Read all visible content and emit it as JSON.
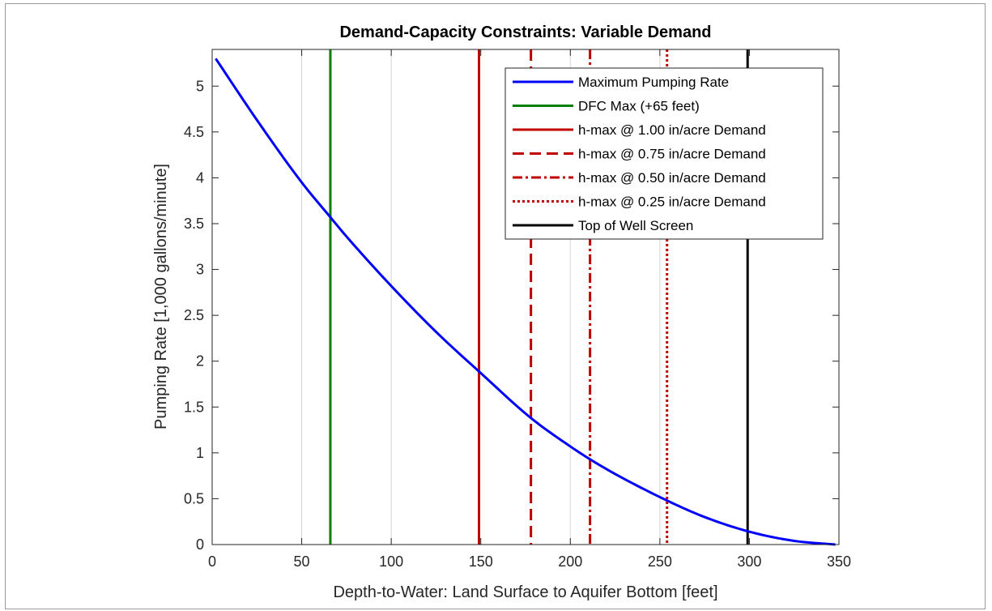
{
  "chart_data": {
    "type": "line",
    "title": "Demand-Capacity Constraints: Variable Demand",
    "xlabel": "Depth-to-Water: Land Surface to Aquifer Bottom [feet]",
    "ylabel": "Pumping Rate [1,000 gallons/minute]",
    "xlim": [
      0,
      350
    ],
    "ylim": [
      0,
      5.4
    ],
    "xticks": [
      "0",
      "50",
      "100",
      "150",
      "200",
      "250",
      "300",
      "350"
    ],
    "yticks": [
      "0",
      "0.5",
      "1",
      "1.5",
      "2",
      "2.5",
      "3",
      "3.5",
      "4",
      "4.5",
      "5"
    ],
    "xtick_values": [
      0,
      50,
      100,
      150,
      200,
      250,
      300,
      350
    ],
    "ytick_values": [
      0,
      0.5,
      1,
      1.5,
      2,
      2.5,
      3,
      3.5,
      4,
      4.5,
      5
    ],
    "grid_x": [
      50,
      100,
      200,
      250
    ],
    "legend_position": "top-right",
    "series": [
      {
        "name": "Maximum Pumping Rate",
        "kind": "curve",
        "color": "#0000ff",
        "style": "solid",
        "x": [
          2,
          25,
          50,
          66,
          75,
          100,
          125,
          150,
          178,
          200,
          211,
          225,
          254,
          275,
          300,
          325,
          348
        ],
        "y": [
          5.3,
          4.63,
          3.95,
          3.57,
          3.36,
          2.82,
          2.32,
          1.87,
          1.38,
          1.07,
          0.93,
          0.77,
          0.48,
          0.3,
          0.14,
          0.04,
          0.0
        ]
      },
      {
        "name": "DFC Max (+65 feet)",
        "kind": "vline",
        "x": 66,
        "color": "#008000",
        "style": "solid"
      },
      {
        "name": "h-max @ 1.00 in/acre Demand",
        "kind": "vline",
        "x": 149,
        "color": "#c00000",
        "style": "solid"
      },
      {
        "name": "h-max @ 0.75 in/acre Demand",
        "kind": "vline",
        "x": 178,
        "color": "#c00000",
        "style": "dashed"
      },
      {
        "name": "h-max @ 0.50 in/acre Demand",
        "kind": "vline",
        "x": 211,
        "color": "#c00000",
        "style": "dashdot"
      },
      {
        "name": "h-max @ 0.25 in/acre Demand",
        "kind": "vline",
        "x": 254,
        "color": "#c00000",
        "style": "dotted"
      },
      {
        "name": "Top of Well Screen",
        "kind": "vline",
        "x": 299,
        "color": "#000000",
        "style": "solid"
      }
    ]
  }
}
